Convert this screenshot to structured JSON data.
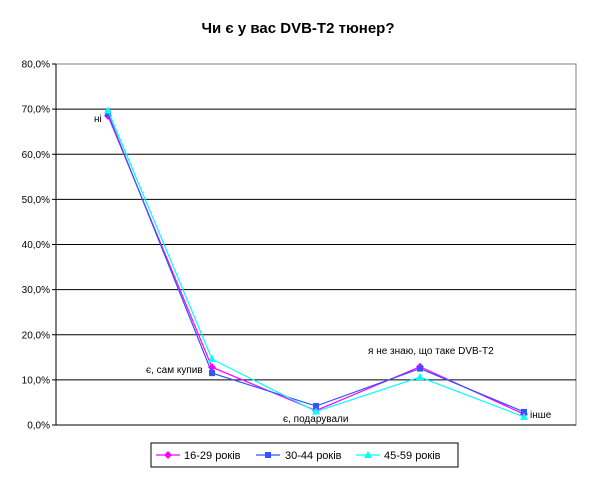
{
  "chart_data": {
    "type": "line",
    "title": "Чи є у вас DVB-T2 тюнер?",
    "xlabel": "",
    "ylabel": "",
    "ylim": [
      0,
      80
    ],
    "yticks": [
      "0,0%",
      "10,0%",
      "20,0%",
      "30,0%",
      "40,0%",
      "50,0%",
      "60,0%",
      "70,0%",
      "80,0%"
    ],
    "categories": [
      "ні",
      "є, сам купив",
      "є, подарували",
      "я не знаю, що таке DVB-T2",
      "інше"
    ],
    "grid": true,
    "legend": "bottom",
    "series": [
      {
        "name": "16-29 років",
        "color": "#ff00ff",
        "marker": "diamond",
        "values": [
          68.5,
          12.8,
          3.2,
          12.9,
          2.4
        ]
      },
      {
        "name": "30-44 років",
        "color": "#3355ff",
        "marker": "square",
        "values": [
          69.0,
          11.5,
          4.2,
          12.5,
          2.9
        ]
      },
      {
        "name": "45-59 років",
        "color": "#00ffff",
        "marker": "triangle",
        "values": [
          69.7,
          14.6,
          3.0,
          10.6,
          1.8
        ]
      }
    ]
  }
}
